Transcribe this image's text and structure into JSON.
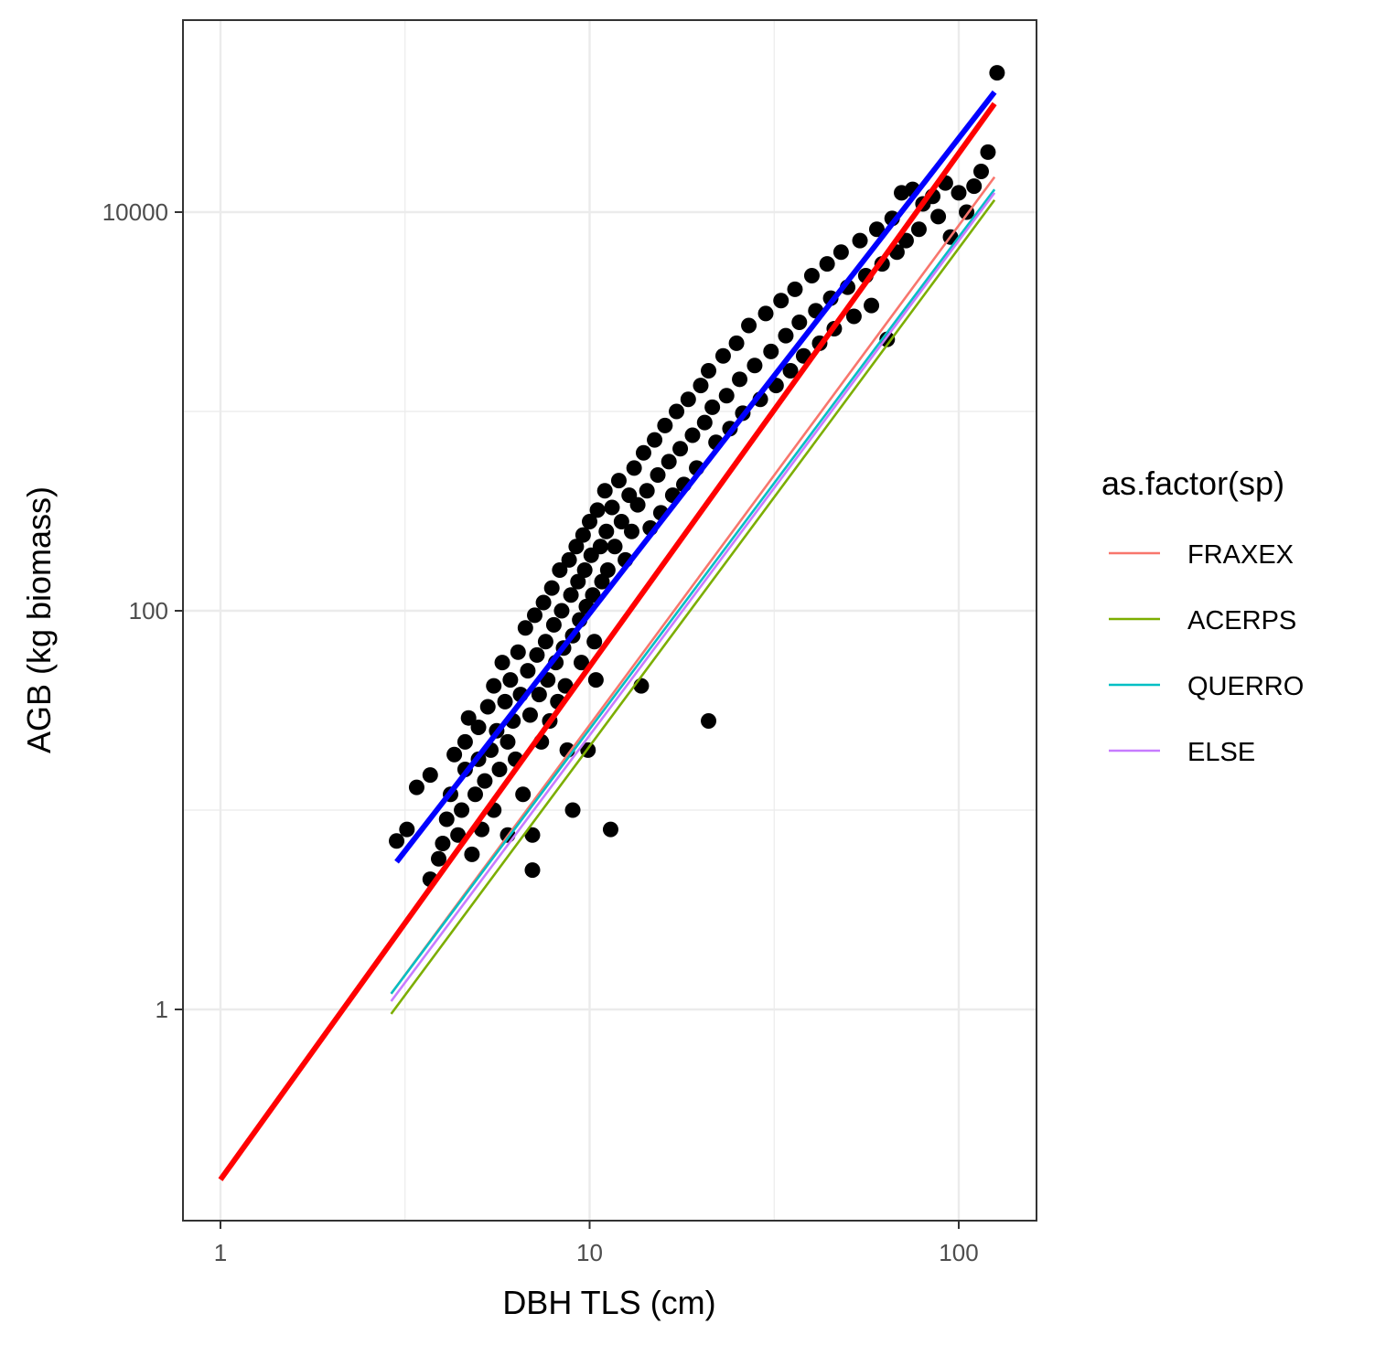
{
  "chart_data": {
    "type": "scatter",
    "xlabel": "DBH TLS (cm)",
    "ylabel": "AGB (kg biomass)",
    "x_scale": "log10",
    "y_scale": "log10",
    "xlim": [
      0.85,
      150
    ],
    "ylim": [
      0.09,
      150000
    ],
    "x_ticks": [
      1,
      10,
      100
    ],
    "x_tick_labels": [
      "1",
      "10",
      "100"
    ],
    "y_ticks": [
      1,
      100,
      10000
    ],
    "y_tick_labels": [
      "1",
      "100",
      "10000"
    ],
    "grid": true,
    "legend": {
      "title": "as.factor(sp)",
      "position": "right",
      "entries": [
        {
          "label": "FRAXEX",
          "color": "#F8766D"
        },
        {
          "label": "ACERPS",
          "color": "#7CAE00"
        },
        {
          "label": "QUERRO",
          "color": "#00BFC4"
        },
        {
          "label": "ELSE",
          "color": "#C77CFF"
        }
      ]
    },
    "series": [
      {
        "label": "FRAXEX",
        "color": "#F8766D",
        "kind": "line",
        "points": [
          [
            2.9,
            1.2
          ],
          [
            125,
            15000
          ]
        ]
      },
      {
        "label": "ACERPS",
        "color": "#7CAE00",
        "kind": "line",
        "points": [
          [
            2.9,
            0.95
          ],
          [
            125,
            11500
          ]
        ]
      },
      {
        "label": "QUERRO",
        "color": "#00BFC4",
        "kind": "line",
        "points": [
          [
            2.9,
            1.2
          ],
          [
            125,
            13000
          ]
        ]
      },
      {
        "label": "ELSE",
        "color": "#C77CFF",
        "kind": "line",
        "points": [
          [
            2.9,
            1.1
          ],
          [
            125,
            12500
          ]
        ]
      },
      {
        "color": "#FF0000",
        "kind": "line",
        "points": [
          [
            1,
            0.14
          ],
          [
            125,
            35000
          ]
        ]
      },
      {
        "color": "#0000FF",
        "kind": "line",
        "points": [
          [
            3.0,
            5.5
          ],
          [
            125,
            40000
          ]
        ]
      }
    ],
    "scatter_points": [
      [
        3.0,
        7.0
      ],
      [
        3.4,
        13.0
      ],
      [
        3.2,
        8.0
      ],
      [
        3.7,
        15.0
      ],
      [
        3.7,
        4.5
      ],
      [
        3.9,
        5.7
      ],
      [
        4.0,
        6.8
      ],
      [
        4.1,
        9.0
      ],
      [
        4.2,
        12.0
      ],
      [
        4.3,
        19.0
      ],
      [
        4.4,
        7.5
      ],
      [
        4.5,
        10.0
      ],
      [
        4.6,
        16.0
      ],
      [
        4.6,
        22.0
      ],
      [
        4.7,
        29.0
      ],
      [
        4.8,
        6.0
      ],
      [
        4.9,
        12.0
      ],
      [
        5.0,
        18.0
      ],
      [
        5.0,
        26.0
      ],
      [
        5.1,
        8.0
      ],
      [
        5.2,
        14.0
      ],
      [
        5.3,
        33.0
      ],
      [
        5.4,
        20.0
      ],
      [
        5.5,
        10.0
      ],
      [
        5.5,
        42.0
      ],
      [
        5.6,
        25.0
      ],
      [
        5.7,
        16.0
      ],
      [
        5.8,
        55.0
      ],
      [
        5.9,
        35.0
      ],
      [
        6.0,
        22.0
      ],
      [
        6.0,
        7.5
      ],
      [
        6.1,
        45.0
      ],
      [
        6.2,
        28.0
      ],
      [
        6.3,
        18.0
      ],
      [
        6.4,
        62.0
      ],
      [
        6.5,
        38.0
      ],
      [
        6.6,
        12.0
      ],
      [
        6.7,
        82.0
      ],
      [
        6.8,
        50.0
      ],
      [
        6.9,
        30.0
      ],
      [
        7.0,
        5.0
      ],
      [
        7.0,
        7.5
      ],
      [
        7.1,
        95.0
      ],
      [
        7.2,
        60.0
      ],
      [
        7.3,
        38.0
      ],
      [
        7.4,
        22.0
      ],
      [
        7.5,
        110.0
      ],
      [
        7.6,
        70.0
      ],
      [
        7.7,
        45.0
      ],
      [
        7.8,
        28.0
      ],
      [
        7.9,
        130.0
      ],
      [
        8.0,
        85.0
      ],
      [
        8.1,
        55.0
      ],
      [
        8.2,
        35.0
      ],
      [
        8.3,
        160.0
      ],
      [
        8.4,
        100.0
      ],
      [
        8.5,
        65.0
      ],
      [
        8.6,
        42.0
      ],
      [
        8.7,
        20.0
      ],
      [
        8.8,
        180.0
      ],
      [
        8.9,
        120.0
      ],
      [
        9.0,
        75.0
      ],
      [
        9.0,
        10.0
      ],
      [
        9.2,
        210.0
      ],
      [
        9.3,
        140.0
      ],
      [
        9.4,
        90.0
      ],
      [
        9.5,
        55.0
      ],
      [
        9.6,
        240.0
      ],
      [
        9.7,
        160.0
      ],
      [
        9.8,
        105.0
      ],
      [
        9.9,
        20.0
      ],
      [
        10.0,
        280.0
      ],
      [
        10.1,
        190.0
      ],
      [
        10.2,
        120.0
      ],
      [
        10.3,
        70.0
      ],
      [
        10.4,
        45.0
      ],
      [
        10.5,
        320.0
      ],
      [
        10.7,
        210.0
      ],
      [
        10.8,
        140.0
      ],
      [
        11.0,
        400.0
      ],
      [
        11.1,
        250.0
      ],
      [
        11.2,
        160.0
      ],
      [
        11.4,
        8.0
      ],
      [
        11.5,
        330.0
      ],
      [
        11.7,
        210.0
      ],
      [
        12.0,
        450.0
      ],
      [
        12.2,
        280.0
      ],
      [
        12.5,
        180.0
      ],
      [
        12.8,
        380.0
      ],
      [
        13.0,
        250.0
      ],
      [
        13.2,
        520.0
      ],
      [
        13.5,
        340.0
      ],
      [
        13.8,
        42.0
      ],
      [
        14.0,
        620.0
      ],
      [
        14.3,
        400.0
      ],
      [
        14.6,
        260.0
      ],
      [
        15.0,
        720.0
      ],
      [
        15.3,
        480.0
      ],
      [
        15.6,
        310.0
      ],
      [
        16.0,
        850.0
      ],
      [
        16.4,
        560.0
      ],
      [
        16.8,
        380.0
      ],
      [
        17.2,
        1000.0
      ],
      [
        17.6,
        650.0
      ],
      [
        18.0,
        430.0
      ],
      [
        18.5,
        1150.0
      ],
      [
        19.0,
        760.0
      ],
      [
        19.5,
        520.0
      ],
      [
        20.0,
        1350.0
      ],
      [
        20.5,
        880.0
      ],
      [
        21.0,
        28.0
      ],
      [
        21.0,
        1600.0
      ],
      [
        21.5,
        1050.0
      ],
      [
        22.0,
        700.0
      ],
      [
        23.0,
        1900.0
      ],
      [
        23.5,
        1200.0
      ],
      [
        24.0,
        820.0
      ],
      [
        25.0,
        2200.0
      ],
      [
        25.5,
        1450.0
      ],
      [
        26.0,
        980.0
      ],
      [
        27.0,
        2700.0
      ],
      [
        28.0,
        1700.0
      ],
      [
        29.0,
        1150.0
      ],
      [
        30.0,
        3100.0
      ],
      [
        31.0,
        2000.0
      ],
      [
        32.0,
        1350.0
      ],
      [
        33.0,
        3600.0
      ],
      [
        34.0,
        2400.0
      ],
      [
        35.0,
        1600.0
      ],
      [
        36.0,
        4100.0
      ],
      [
        37.0,
        2800.0
      ],
      [
        38.0,
        1900.0
      ],
      [
        40.0,
        4800.0
      ],
      [
        41.0,
        3200.0
      ],
      [
        42.0,
        2200.0
      ],
      [
        44.0,
        5500.0
      ],
      [
        45.0,
        3700.0
      ],
      [
        46.0,
        2600.0
      ],
      [
        48.0,
        6300.0
      ],
      [
        50.0,
        4200.0
      ],
      [
        52.0,
        3000.0
      ],
      [
        54.0,
        7200.0
      ],
      [
        56.0,
        4800.0
      ],
      [
        58.0,
        3400.0
      ],
      [
        60.0,
        8200.0
      ],
      [
        62.0,
        5500.0
      ],
      [
        64.0,
        2300.0
      ],
      [
        66.0,
        9300.0
      ],
      [
        68.0,
        6300.0
      ],
      [
        70.0,
        12500.0
      ],
      [
        72.0,
        7200.0
      ],
      [
        75.0,
        13000.0
      ],
      [
        78.0,
        8200.0
      ],
      [
        80.0,
        11000.0
      ],
      [
        85.0,
        12000.0
      ],
      [
        88.0,
        9500.0
      ],
      [
        92.0,
        14000.0
      ],
      [
        95.0,
        7500.0
      ],
      [
        100.0,
        12500.0
      ],
      [
        105.0,
        10000.0
      ],
      [
        110.0,
        13500.0
      ],
      [
        115.0,
        16000.0
      ],
      [
        120.0,
        20000.0
      ],
      [
        127.0,
        50000.0
      ]
    ]
  }
}
